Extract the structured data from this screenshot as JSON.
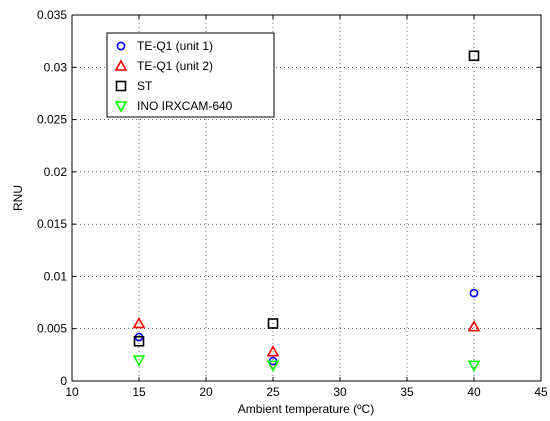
{
  "chart_data": {
    "type": "scatter",
    "title": "",
    "xlabel": "Ambient temperature (ºC)",
    "ylabel": "RNU",
    "xlim": [
      10,
      45
    ],
    "ylim": [
      0,
      0.035
    ],
    "xticks": [
      10,
      15,
      20,
      25,
      30,
      35,
      40,
      45
    ],
    "yticks": [
      0,
      0.005,
      0.01,
      0.015,
      0.02,
      0.025,
      0.03,
      0.035
    ],
    "xtick_labels": [
      "10",
      "15",
      "20",
      "25",
      "30",
      "35",
      "40",
      "45"
    ],
    "ytick_labels": [
      "0",
      "0.005",
      "0.01",
      "0.015",
      "0.02",
      "0.025",
      "0.03",
      "0.035"
    ],
    "grid": true,
    "legend_position": "top-left",
    "series": [
      {
        "name": "TE-Q1 (unit 1)",
        "marker": "circle",
        "color": "#0000ff",
        "points": [
          [
            15,
            0.0042
          ],
          [
            25,
            0.0019
          ],
          [
            40,
            0.0084
          ]
        ]
      },
      {
        "name": "TE-Q1 (unit 2)",
        "marker": "triangle-up",
        "color": "#ff0000",
        "points": [
          [
            15,
            0.0055
          ],
          [
            25,
            0.0028
          ],
          [
            40,
            0.0052
          ]
        ]
      },
      {
        "name": "ST",
        "marker": "square",
        "color": "#000000",
        "points": [
          [
            15,
            0.0038
          ],
          [
            25,
            0.0055
          ],
          [
            40,
            0.0311
          ]
        ]
      },
      {
        "name": "INO IRXCAM-640",
        "marker": "triangle-down",
        "color": "#00ff00",
        "points": [
          [
            15,
            0.002
          ],
          [
            25,
            0.0015
          ],
          [
            40,
            0.0015
          ]
        ]
      }
    ]
  }
}
